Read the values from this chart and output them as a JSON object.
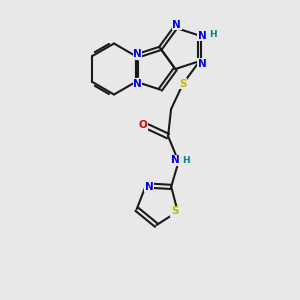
{
  "bg_color": "#e8e8e8",
  "bond_color": "#1a1a1a",
  "N_color": "#0000ee",
  "O_color": "#dd0000",
  "S_color": "#bbbb00",
  "H_color": "#008888",
  "lw": 1.5,
  "fs": 7.5,
  "xlim": [
    0,
    10
  ],
  "ylim": [
    0,
    10
  ]
}
